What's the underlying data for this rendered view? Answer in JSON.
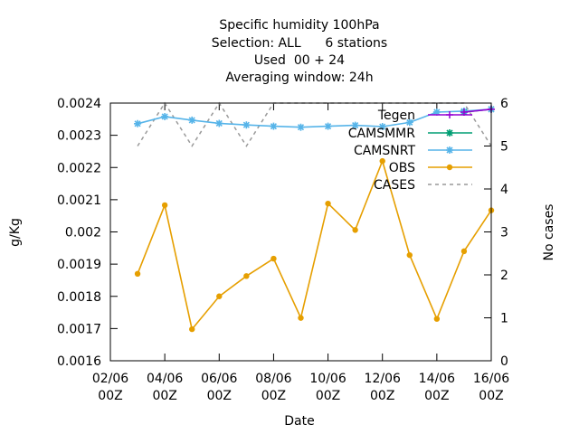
{
  "chart_data": {
    "type": "line",
    "title": [
      "Specific humidity 100hPa",
      "Selection: ALL      6 stations",
      "Used  00 + 24",
      "Averaging window: 24h"
    ],
    "xlabel": "Date",
    "ylabel": "g/Kg",
    "y2label": "No cases",
    "x": [
      "02/06 00Z",
      "03/06 00Z",
      "04/06 00Z",
      "05/06 00Z",
      "06/06 00Z",
      "07/06 00Z",
      "08/06 00Z",
      "09/06 00Z",
      "10/06 00Z",
      "11/06 00Z",
      "12/06 00Z",
      "13/06 00Z",
      "14/06 00Z",
      "15/06 00Z"
    ],
    "xticks": [
      {
        "line1": "02/06",
        "line2": "00Z"
      },
      {
        "line1": "04/06",
        "line2": "00Z"
      },
      {
        "line1": "06/06",
        "line2": "00Z"
      },
      {
        "line1": "08/06",
        "line2": "00Z"
      },
      {
        "line1": "10/06",
        "line2": "00Z"
      },
      {
        "line1": "12/06",
        "line2": "00Z"
      },
      {
        "line1": "14/06",
        "line2": "00Z"
      },
      {
        "line1": "16/06",
        "line2": "00Z"
      }
    ],
    "ylim": [
      0.0016,
      0.0024
    ],
    "yticks": [
      "0.0016",
      "0.0017",
      "0.0018",
      "0.0019",
      "0.002",
      "0.0021",
      "0.0022",
      "0.0023",
      "0.0024"
    ],
    "y2lim": [
      0,
      6
    ],
    "y2ticks": [
      "0",
      "1",
      "2",
      "3",
      "4",
      "5",
      "6"
    ],
    "legend_position": "top-right",
    "series": [
      {
        "name": "Tegen",
        "color": "#9400d3",
        "marker": "plus",
        "axis": "y1",
        "values": [
          null,
          null,
          null,
          null,
          null,
          null,
          null,
          null,
          null,
          null,
          null,
          null,
          0.002372,
          0.002381
        ]
      },
      {
        "name": "CAMSMMR",
        "color": "#009e73",
        "marker": "star",
        "axis": "y1",
        "values": [
          null,
          null,
          null,
          null,
          null,
          null,
          null,
          null,
          null,
          null,
          null,
          null,
          0.002372,
          0.002381
        ]
      },
      {
        "name": "CAMSNRT",
        "color": "#56b4e9",
        "marker": "star",
        "axis": "y1",
        "values": [
          0.002336,
          0.002358,
          0.002347,
          0.002337,
          0.002332,
          0.002328,
          0.002325,
          0.002328,
          0.002331,
          0.002327,
          0.00234,
          0.002372,
          0.002375,
          0.002381
        ]
      },
      {
        "name": "OBS",
        "color": "#e69f00",
        "marker": "dot",
        "axis": "y1",
        "values": [
          0.00187,
          0.002083,
          0.001698,
          0.0018,
          0.001863,
          0.001917,
          0.001733,
          0.002088,
          0.002006,
          0.00222,
          0.001928,
          0.00173,
          0.00194,
          0.002067
        ]
      },
      {
        "name": "CASES",
        "color": "#999999",
        "marker": "none",
        "dashed": true,
        "axis": "y2",
        "values": [
          5,
          6,
          5,
          6,
          5,
          6,
          6,
          6,
          6,
          6,
          6,
          6,
          6,
          5
        ]
      }
    ]
  }
}
